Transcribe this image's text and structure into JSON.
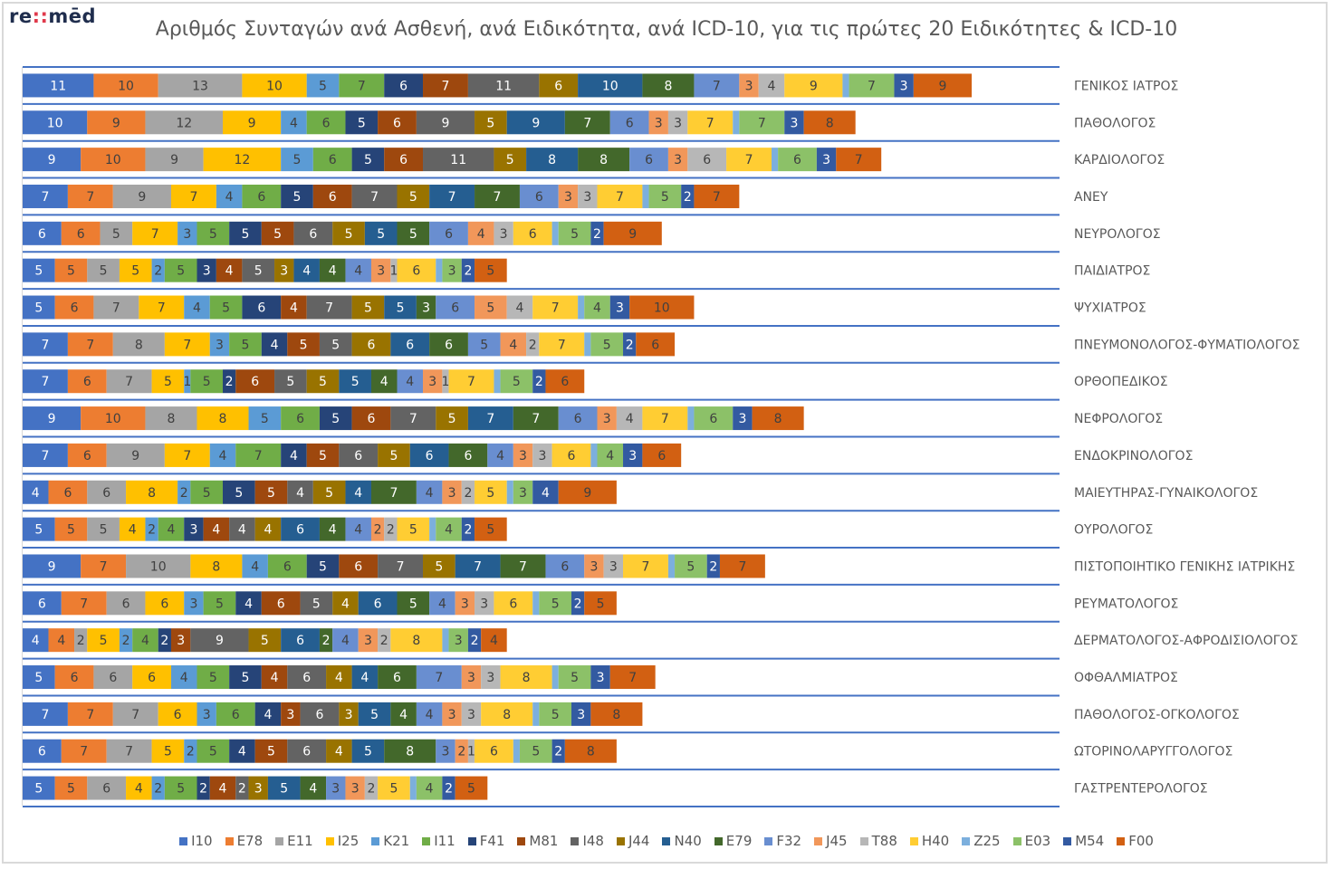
{
  "logo": {
    "prefix": "re",
    "dots": "::",
    "suffix": "mēd"
  },
  "chart_data": {
    "type": "bar",
    "orientation": "horizontal-stacked",
    "title": "Αριθμός Συνταγών ανά Ασθενή, ανά Ειδικότητα, ανά ICD-10, για τις πρώτες 20 Ειδικότητες & ICD-10",
    "xlabel": "",
    "ylabel": "",
    "legend_position": "bottom",
    "grid": true,
    "categories": [
      "ΓΕΝΙΚΟΣ ΙΑΤΡΟΣ",
      "ΠΑΘΟΛΟΓΟΣ",
      "ΚΑΡΔΙΟΛΟΓΟΣ",
      "ΑΝΕΥ",
      "ΝΕΥΡΟΛΟΓΟΣ",
      "ΠΑΙΔΙΑΤΡΟΣ",
      "ΨΥΧΙΑΤΡΟΣ",
      "ΠΝΕΥΜΟΝΟΛΟΓΟΣ-ΦΥΜΑΤΙΟΛΟΓΟΣ",
      "ΟΡΘΟΠΕΔΙΚΟΣ",
      "ΝΕΦΡΟΛΟΓΟΣ",
      "ΕΝΔΟΚΡΙΝΟΛΟΓΟΣ",
      "ΜΑΙΕΥΤΗΡΑΣ-ΓΥΝΑΙΚΟΛΟΓΟΣ",
      "ΟΥΡΟΛΟΓΟΣ",
      "ΠΙΣΤΟΠΟΙΗΤΙΚΟ ΓΕΝΙΚΗΣ ΙΑΤΡΙΚΗΣ",
      "ΡΕΥΜΑΤΟΛΟΓΟΣ",
      "ΔΕΡΜΑΤΟΛΟΓΟΣ-ΑΦΡΟΔΙΣΙΟΛΟΓΟΣ",
      "ΟΦΘΑΛΜΙΑΤΡΟΣ",
      "ΠΑΘΟΛΟΓΟΣ-ΟΓΚΟΛΟΓΟΣ",
      "ΩΤΟΡΙΝΟΛΑΡΥΓΓΟΛΟΓΟΣ",
      "ΓΑΣΤΡΕΝΤΕΡΟΛΟΓΟΣ"
    ],
    "series": [
      {
        "name": "I10",
        "color": "#4472c4",
        "label_color": "#ffffff",
        "values": [
          11,
          10,
          9,
          7,
          6,
          5,
          5,
          7,
          7,
          9,
          7,
          4,
          5,
          9,
          6,
          4,
          5,
          7,
          6,
          5
        ]
      },
      {
        "name": "E78",
        "color": "#ed7d31",
        "label_color": "#404040",
        "values": [
          10,
          9,
          10,
          7,
          6,
          5,
          6,
          7,
          6,
          10,
          6,
          6,
          5,
          7,
          7,
          4,
          6,
          7,
          7,
          5
        ]
      },
      {
        "name": "E11",
        "color": "#a5a5a5",
        "label_color": "#404040",
        "values": [
          13,
          12,
          9,
          9,
          5,
          5,
          7,
          8,
          7,
          8,
          9,
          6,
          5,
          10,
          6,
          2,
          6,
          7,
          7,
          6
        ]
      },
      {
        "name": "I25",
        "color": "#ffc000",
        "label_color": "#404040",
        "values": [
          10,
          9,
          12,
          7,
          7,
          5,
          7,
          7,
          5,
          8,
          7,
          8,
          4,
          8,
          6,
          5,
          6,
          6,
          5,
          4
        ]
      },
      {
        "name": "K21",
        "color": "#5b9bd5",
        "label_color": "#404040",
        "values": [
          5,
          4,
          5,
          4,
          3,
          2,
          4,
          3,
          1,
          5,
          4,
          2,
          2,
          4,
          3,
          2,
          4,
          3,
          2,
          2
        ]
      },
      {
        "name": "I11",
        "color": "#70ad47",
        "label_color": "#404040",
        "values": [
          7,
          6,
          6,
          6,
          5,
          5,
          5,
          5,
          5,
          6,
          7,
          5,
          4,
          6,
          5,
          4,
          5,
          6,
          5,
          5
        ]
      },
      {
        "name": "F41",
        "color": "#264478",
        "label_color": "#ffffff",
        "values": [
          6,
          5,
          5,
          5,
          5,
          3,
          6,
          4,
          2,
          5,
          4,
          5,
          3,
          5,
          4,
          2,
          5,
          4,
          4,
          2
        ]
      },
      {
        "name": "M81",
        "color": "#9e480e",
        "label_color": "#ffffff",
        "values": [
          7,
          6,
          6,
          6,
          5,
          4,
          4,
          5,
          6,
          6,
          5,
          5,
          4,
          6,
          6,
          3,
          4,
          3,
          5,
          4
        ]
      },
      {
        "name": "I48",
        "color": "#636363",
        "label_color": "#ffffff",
        "values": [
          11,
          9,
          11,
          7,
          6,
          5,
          7,
          5,
          5,
          7,
          6,
          4,
          4,
          7,
          5,
          9,
          6,
          6,
          6,
          2
        ]
      },
      {
        "name": "J44",
        "color": "#997300",
        "label_color": "#ffffff",
        "values": [
          6,
          5,
          5,
          5,
          5,
          3,
          5,
          6,
          5,
          5,
          5,
          5,
          4,
          5,
          4,
          5,
          4,
          3,
          4,
          3
        ]
      },
      {
        "name": "N40",
        "color": "#255e91",
        "label_color": "#ffffff",
        "values": [
          10,
          9,
          8,
          7,
          5,
          4,
          5,
          6,
          5,
          7,
          6,
          4,
          6,
          7,
          6,
          6,
          4,
          5,
          5,
          5
        ]
      },
      {
        "name": "E79",
        "color": "#43682b",
        "label_color": "#ffffff",
        "values": [
          8,
          7,
          8,
          7,
          5,
          4,
          3,
          6,
          4,
          7,
          6,
          7,
          4,
          7,
          5,
          2,
          6,
          4,
          8,
          4
        ]
      },
      {
        "name": "F32",
        "color": "#698ed0",
        "label_color": "#404040",
        "values": [
          7,
          6,
          6,
          6,
          6,
          4,
          6,
          5,
          4,
          6,
          4,
          4,
          4,
          6,
          4,
          4,
          7,
          4,
          3,
          3
        ]
      },
      {
        "name": "J45",
        "color": "#f1975a",
        "label_color": "#404040",
        "values": [
          3,
          3,
          3,
          3,
          4,
          3,
          5,
          4,
          3,
          3,
          3,
          3,
          2,
          3,
          3,
          3,
          3,
          3,
          2,
          3
        ]
      },
      {
        "name": "T88",
        "color": "#b7b7b7",
        "label_color": "#404040",
        "values": [
          4,
          3,
          6,
          3,
          3,
          1,
          4,
          2,
          1,
          4,
          3,
          2,
          2,
          3,
          3,
          2,
          3,
          3,
          1,
          2
        ]
      },
      {
        "name": "H40",
        "color": "#ffcd33",
        "label_color": "#404040",
        "values": [
          9,
          7,
          7,
          7,
          6,
          6,
          7,
          7,
          7,
          7,
          6,
          5,
          5,
          7,
          6,
          8,
          8,
          8,
          6,
          5
        ]
      },
      {
        "name": "Z25",
        "color": "#7cafdd",
        "label_color": "#404040",
        "values": [
          1,
          1,
          1,
          1,
          1,
          1,
          1,
          1,
          1,
          1,
          1,
          1,
          1,
          1,
          1,
          1,
          1,
          1,
          1,
          1
        ],
        "labels_hidden": true
      },
      {
        "name": "E03",
        "color": "#8cc168",
        "label_color": "#404040",
        "values": [
          7,
          7,
          6,
          5,
          5,
          3,
          4,
          5,
          5,
          6,
          4,
          3,
          4,
          5,
          5,
          3,
          5,
          5,
          5,
          4
        ]
      },
      {
        "name": "M54",
        "color": "#335aa1",
        "label_color": "#ffffff",
        "values": [
          3,
          3,
          3,
          2,
          2,
          2,
          3,
          2,
          2,
          3,
          3,
          4,
          2,
          2,
          2,
          2,
          3,
          3,
          2,
          2
        ]
      },
      {
        "name": "F00",
        "color": "#d26012",
        "label_color": "#404040",
        "values": [
          9,
          8,
          7,
          7,
          9,
          5,
          10,
          6,
          6,
          8,
          6,
          9,
          5,
          7,
          5,
          4,
          7,
          8,
          8,
          5
        ]
      }
    ]
  }
}
